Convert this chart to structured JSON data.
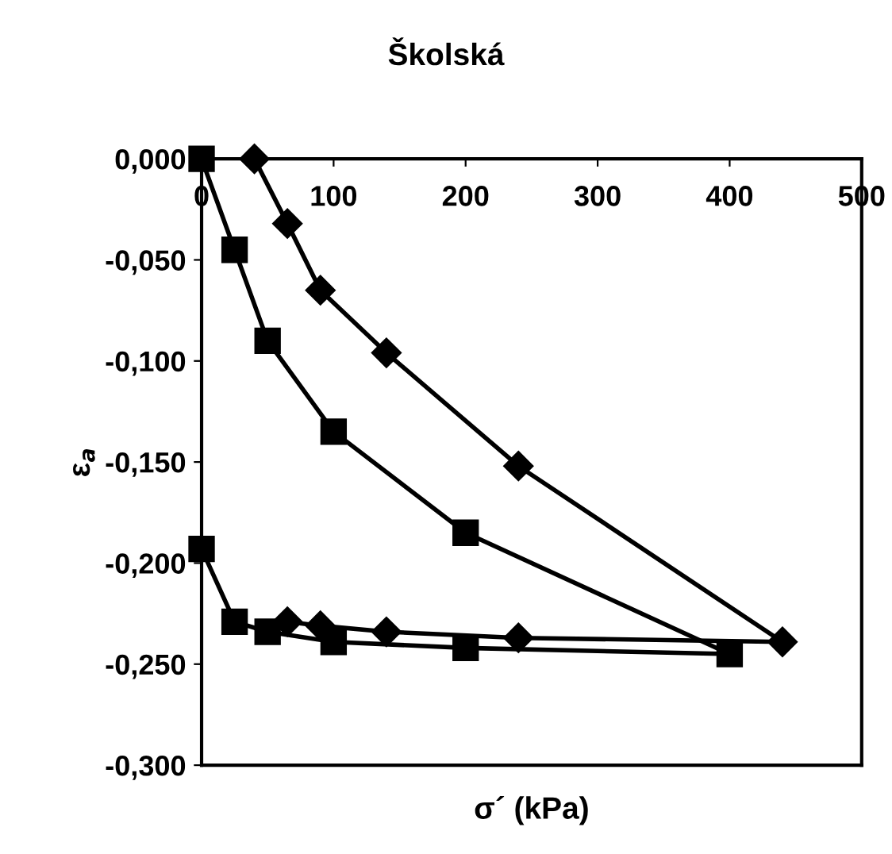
{
  "chart_data": {
    "type": "line",
    "title": "Školská",
    "xlabel": "σ´ (kPa)",
    "ylabel": "ε$_{a}$",
    "series": [
      {
        "color": "#000000",
        "marker": "diamond",
        "x": [
          40,
          65,
          90,
          140,
          240,
          440,
          240,
          140,
          90,
          65
        ],
        "values": [
          0.0,
          -0.032,
          -0.065,
          -0.096,
          -0.152,
          -0.239,
          -0.237,
          -0.234,
          -0.231,
          -0.229
        ]
      },
      {
        "color": "#000000",
        "marker": "square",
        "x": [
          0,
          25,
          50,
          100,
          200,
          400,
          200,
          100,
          50,
          25,
          0
        ],
        "values": [
          0.0,
          -0.045,
          -0.09,
          -0.135,
          -0.185,
          -0.245,
          -0.242,
          -0.239,
          -0.234,
          -0.229,
          -0.193
        ]
      }
    ],
    "xlim": [
      0,
      500
    ],
    "xticks": [
      0,
      100,
      200,
      300,
      400,
      500
    ],
    "ylim": [
      -0.3,
      0.0
    ],
    "yticks": [
      {
        "value": 0.0,
        "label": "0,000"
      },
      {
        "value": -0.05,
        "label": "-0,050"
      },
      {
        "value": -0.1,
        "label": "-0,100"
      },
      {
        "value": -0.15,
        "label": "-0,150"
      },
      {
        "value": -0.2,
        "label": "-0,200"
      },
      {
        "value": -0.25,
        "label": "-0,250"
      },
      {
        "value": -0.3,
        "label": "-0,300"
      }
    ],
    "grid": false,
    "legend": false,
    "line_style": "solid"
  }
}
